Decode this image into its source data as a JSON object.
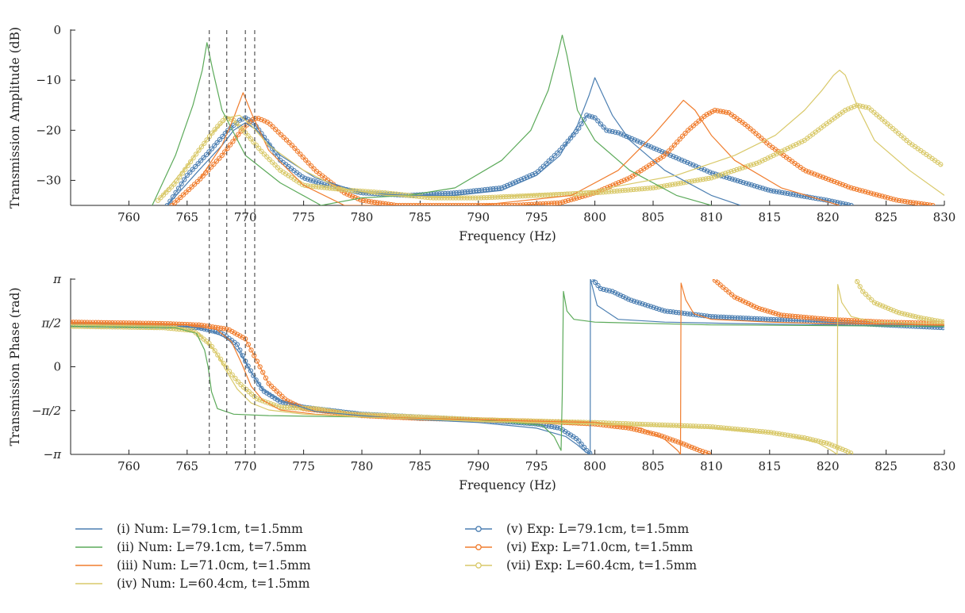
{
  "chart_data": [
    {
      "type": "line",
      "xlabel": "Frequency (Hz)",
      "ylabel": "Transmission Amplitude (dB)",
      "xlim": [
        755,
        830
      ],
      "ylim": [
        -35,
        0
      ],
      "xticks": [
        760,
        765,
        770,
        775,
        780,
        785,
        790,
        795,
        800,
        805,
        810,
        815,
        820,
        825,
        830
      ],
      "yticks": [
        {
          "value": 0,
          "label": "0"
        },
        {
          "value": -10,
          "label": "−10"
        },
        {
          "value": -20,
          "label": "−20"
        },
        {
          "value": -30,
          "label": "−30"
        }
      ],
      "vlines": [
        766.9,
        768.4,
        770.0,
        770.8
      ],
      "series": [
        {
          "id": "i",
          "kind": "num",
          "color": "#4c7fb2",
          "x": [
            763.3,
            766,
            768,
            769,
            770,
            771,
            773,
            776,
            780,
            784,
            788,
            792,
            795,
            797,
            798.5,
            799.5,
            800,
            800.5,
            801.5,
            803,
            806,
            810,
            812.5
          ],
          "y": [
            -35,
            -28,
            -23,
            -20,
            -18.5,
            -20,
            -25,
            -29.5,
            -32.5,
            -33,
            -33,
            -32,
            -29,
            -25,
            -19,
            -13,
            -9.5,
            -12,
            -17,
            -22,
            -28,
            -33,
            -35
          ]
        },
        {
          "id": "ii",
          "kind": "num",
          "color": "#5caa5a",
          "x": [
            762,
            764,
            765.5,
            766.3,
            766.7,
            767.2,
            768,
            770,
            773,
            776.5,
            780,
            784,
            788,
            792,
            794.5,
            796,
            796.8,
            797.2,
            797.6,
            798.5,
            800,
            803,
            807,
            810
          ],
          "y": [
            -35,
            -25,
            -15,
            -8,
            -2.5,
            -8,
            -16,
            -25,
            -30.5,
            -35,
            -33.5,
            -33,
            -31.5,
            -26,
            -20,
            -12,
            -5,
            -1,
            -5,
            -16,
            -22,
            -28,
            -33,
            -35
          ]
        },
        {
          "id": "iii",
          "kind": "num",
          "color": "#f07d2e",
          "x": [
            763.7,
            766,
            768,
            769,
            769.8,
            770.6,
            772,
            775,
            778.5,
            790,
            798,
            802,
            805,
            806.5,
            807.6,
            808.6,
            810,
            812,
            816,
            821
          ],
          "y": [
            -35,
            -30,
            -23,
            -17.5,
            -12.5,
            -17,
            -24,
            -31,
            -35,
            -35,
            -33,
            -28,
            -21,
            -17,
            -14,
            -16,
            -21,
            -26,
            -31.5,
            -35
          ]
        },
        {
          "id": "iv",
          "kind": "num",
          "color": "#d9c96a",
          "x": [
            762.5,
            765,
            767,
            768.5,
            769.5,
            770.5,
            772,
            775,
            778,
            782,
            790,
            800,
            807,
            812,
            815.5,
            818,
            819.5,
            820.5,
            821,
            821.5,
            822.5,
            824,
            827,
            830
          ],
          "y": [
            -34,
            -27,
            -21,
            -17.5,
            -17,
            -19,
            -23,
            -28,
            -31.5,
            -33,
            -33.5,
            -32,
            -29,
            -25,
            -21,
            -16,
            -12,
            -9,
            -8,
            -9,
            -15,
            -22,
            -28,
            -33
          ]
        },
        {
          "id": "v",
          "kind": "exp",
          "color": "#4c7fb2",
          "x": [
            763.3,
            765,
            767,
            768.5,
            769.5,
            770,
            770.7,
            771.5,
            773,
            775,
            777,
            780,
            784,
            788,
            792,
            795,
            797,
            798.5,
            799.3,
            800,
            801,
            802,
            804,
            806,
            810,
            815,
            820,
            822
          ],
          "y": [
            -35,
            -29,
            -24,
            -20,
            -18,
            -17.5,
            -18.5,
            -21,
            -26,
            -29.5,
            -31,
            -32.5,
            -33,
            -32.5,
            -31.5,
            -28.5,
            -24,
            -20,
            -17,
            -17.5,
            -20,
            -20.5,
            -22.5,
            -24.5,
            -28.5,
            -32,
            -34,
            -35
          ]
        },
        {
          "id": "vi",
          "kind": "exp",
          "color": "#f07d2e",
          "x": [
            763.7,
            766,
            768,
            769.5,
            770.5,
            771,
            772,
            774,
            776,
            778.5,
            780,
            783,
            793,
            797,
            800,
            803,
            806,
            808,
            809.5,
            810.3,
            811.5,
            813,
            815,
            818,
            822,
            826,
            829
          ],
          "y": [
            -35,
            -30,
            -25,
            -20.5,
            -18,
            -17.5,
            -18.5,
            -23,
            -28,
            -32.5,
            -34,
            -35,
            -35,
            -34.5,
            -32.5,
            -29.5,
            -25,
            -20,
            -17,
            -16,
            -16.5,
            -19,
            -23,
            -28,
            -31.5,
            -34,
            -35
          ]
        },
        {
          "id": "vii",
          "kind": "exp",
          "color": "#d9c96a",
          "x": [
            762.5,
            764,
            766,
            767.5,
            768.3,
            769,
            770,
            771.5,
            773,
            775,
            777,
            779,
            782,
            786,
            790,
            795,
            800,
            805,
            810,
            814,
            818,
            820,
            821.5,
            822.5,
            823.5,
            825,
            827,
            829.8
          ],
          "y": [
            -34,
            -30.5,
            -24,
            -19.5,
            -17.5,
            -18,
            -20.5,
            -24.5,
            -28,
            -31,
            -31.5,
            -32,
            -32.5,
            -33.5,
            -33.5,
            -33,
            -32.5,
            -31.5,
            -29.5,
            -26.5,
            -22,
            -18.5,
            -16,
            -15,
            -15.5,
            -18.5,
            -22.5,
            -27
          ]
        }
      ]
    },
    {
      "type": "line",
      "xlabel": "Frequency (Hz)",
      "ylabel": "Transmission Phase (rad)",
      "xlim": [
        755,
        830
      ],
      "ylim": [
        -3.1416,
        3.1416
      ],
      "xticks": [
        760,
        765,
        770,
        775,
        780,
        785,
        790,
        795,
        800,
        805,
        810,
        815,
        820,
        825,
        830
      ],
      "yticks": [
        {
          "value": 3.1416,
          "label": "π"
        },
        {
          "value": 1.5708,
          "label": "π/2"
        },
        {
          "value": 0,
          "label": "0"
        },
        {
          "value": -1.5708,
          "label": "−π/2"
        },
        {
          "value": -3.1416,
          "label": "−π"
        }
      ],
      "vlines": [
        766.9,
        768.4,
        770.0,
        770.8
      ],
      "series": [
        {
          "id": "i",
          "kind": "num",
          "color": "#4c7fb2",
          "x": [
            755,
            765,
            767,
            768.5,
            769.5,
            770.5,
            771.5,
            773,
            776,
            780,
            785,
            790,
            795,
            797.5,
            798.5,
            799.2,
            799.6,
            799.62,
            800.2,
            802,
            806,
            812,
            820,
            830
          ],
          "y": [
            1.5,
            1.45,
            1.3,
            1.0,
            0.5,
            -0.2,
            -0.8,
            -1.2,
            -1.6,
            -1.75,
            -1.9,
            -2.0,
            -2.2,
            -2.5,
            -2.8,
            -3.05,
            -3.14,
            3.14,
            2.2,
            1.7,
            1.6,
            1.55,
            1.5,
            1.45
          ]
        },
        {
          "id": "ii",
          "kind": "num",
          "color": "#5caa5a",
          "x": [
            755,
            764,
            765.8,
            766.5,
            766.8,
            767.1,
            767.6,
            769,
            772,
            780,
            790,
            795.5,
            796.5,
            797.1,
            797.2,
            797.3,
            797.6,
            798.2,
            800,
            810,
            830
          ],
          "y": [
            1.45,
            1.4,
            1.2,
            0.6,
            0,
            -0.9,
            -1.5,
            -1.7,
            -1.75,
            -1.8,
            -1.9,
            -2.1,
            -2.5,
            -3.0,
            -1.0,
            2.7,
            2.0,
            1.7,
            1.6,
            1.5,
            1.45
          ]
        },
        {
          "id": "iii",
          "kind": "num",
          "color": "#f07d2e",
          "x": [
            755,
            765,
            767.5,
            768.8,
            769.7,
            770.5,
            771.5,
            773,
            776,
            780,
            790,
            800,
            804,
            806,
            807.1,
            807.35,
            807.4,
            807.8,
            808.5,
            810,
            815,
            820,
            830
          ],
          "y": [
            1.55,
            1.5,
            1.35,
            0.9,
            0.1,
            -0.7,
            -1.2,
            -1.55,
            -1.7,
            -1.8,
            -1.9,
            -2.0,
            -2.2,
            -2.6,
            -3.0,
            -3.14,
            3.0,
            2.4,
            1.9,
            1.7,
            1.6,
            1.55,
            1.5
          ]
        },
        {
          "id": "iv",
          "kind": "num",
          "color": "#d9c96a",
          "x": [
            755,
            764,
            766,
            767.5,
            768.3,
            769.3,
            770.5,
            772,
            775,
            780,
            790,
            800,
            810,
            816,
            819,
            820.3,
            820.8,
            820.85,
            821.2,
            822,
            824,
            830
          ],
          "y": [
            1.5,
            1.45,
            1.2,
            0.5,
            -0.1,
            -0.8,
            -1.3,
            -1.55,
            -1.7,
            -1.8,
            -1.95,
            -2.05,
            -2.2,
            -2.4,
            -2.7,
            -3.0,
            -3.14,
            2.95,
            2.3,
            1.8,
            1.6,
            1.55
          ]
        },
        {
          "id": "v",
          "kind": "exp",
          "color": "#4c7fb2",
          "x": [
            755,
            763,
            766,
            768,
            769.3,
            770,
            770.8,
            771.5,
            773,
            775,
            777,
            780,
            785,
            790,
            795,
            797,
            798.5,
            799.3,
            799.7,
            799.8,
            800.5,
            801.5,
            803,
            806,
            810,
            815,
            820,
            825,
            830
          ],
          "y": [
            1.5,
            1.45,
            1.4,
            1.2,
            0.8,
            0.2,
            -0.4,
            -0.85,
            -1.25,
            -1.45,
            -1.55,
            -1.7,
            -1.8,
            -1.9,
            -2.05,
            -2.2,
            -2.6,
            -3.0,
            -3.14,
            3.14,
            2.8,
            2.7,
            2.4,
            2.0,
            1.8,
            1.7,
            1.6,
            1.5,
            1.4
          ]
        },
        {
          "id": "vi",
          "kind": "exp",
          "color": "#f07d2e",
          "x": [
            755,
            763,
            766,
            768.5,
            770,
            771,
            772,
            773.5,
            775,
            777,
            780,
            785,
            790,
            795,
            800,
            803,
            805.5,
            807.5,
            809,
            810,
            810.2,
            811,
            812,
            814,
            816,
            820,
            825,
            830
          ],
          "y": [
            1.6,
            1.55,
            1.5,
            1.35,
            1.0,
            0.2,
            -0.6,
            -1.2,
            -1.5,
            -1.6,
            -1.75,
            -1.85,
            -1.9,
            -1.95,
            -2.05,
            -2.2,
            -2.45,
            -2.75,
            -3.0,
            -3.14,
            3.14,
            2.85,
            2.5,
            2.1,
            1.85,
            1.7,
            1.6,
            1.55
          ]
        },
        {
          "id": "vii",
          "kind": "exp",
          "color": "#d9c96a",
          "x": [
            755,
            763,
            765.5,
            767,
            768,
            768.5,
            769.5,
            771,
            773,
            776,
            779,
            785,
            790,
            800,
            810,
            815,
            818,
            820,
            821.5,
            822.2,
            822.4,
            823,
            824,
            826,
            828,
            830
          ],
          "y": [
            1.45,
            1.4,
            1.3,
            0.8,
            0.2,
            -0.1,
            -0.6,
            -1.15,
            -1.45,
            -1.5,
            -1.7,
            -1.8,
            -1.9,
            -2.0,
            -2.15,
            -2.35,
            -2.55,
            -2.75,
            -3.0,
            -3.14,
            3.14,
            2.7,
            2.3,
            1.95,
            1.75,
            1.6
          ]
        }
      ]
    }
  ],
  "legend": {
    "left": [
      {
        "id": "i",
        "label": "(i) Num: L=79.1cm, t=1.5mm",
        "color": "#4c7fb2",
        "marker": false
      },
      {
        "id": "ii",
        "label": "(ii) Num: L=79.1cm, t=7.5mm",
        "color": "#5caa5a",
        "marker": false
      },
      {
        "id": "iii",
        "label": "(iii) Num: L=71.0cm, t=1.5mm",
        "color": "#f07d2e",
        "marker": false
      },
      {
        "id": "iv",
        "label": "(iv) Num: L=60.4cm, t=1.5mm",
        "color": "#d9c96a",
        "marker": false
      }
    ],
    "right": [
      {
        "id": "v",
        "label": "(v) Exp: L=79.1cm, t=1.5mm",
        "color": "#4c7fb2",
        "marker": true
      },
      {
        "id": "vi",
        "label": "(vi) Exp: L=71.0cm, t=1.5mm",
        "color": "#f07d2e",
        "marker": true
      },
      {
        "id": "vii",
        "label": "(vii) Exp: L=60.4cm, t=1.5mm",
        "color": "#d9c96a",
        "marker": true
      }
    ]
  }
}
